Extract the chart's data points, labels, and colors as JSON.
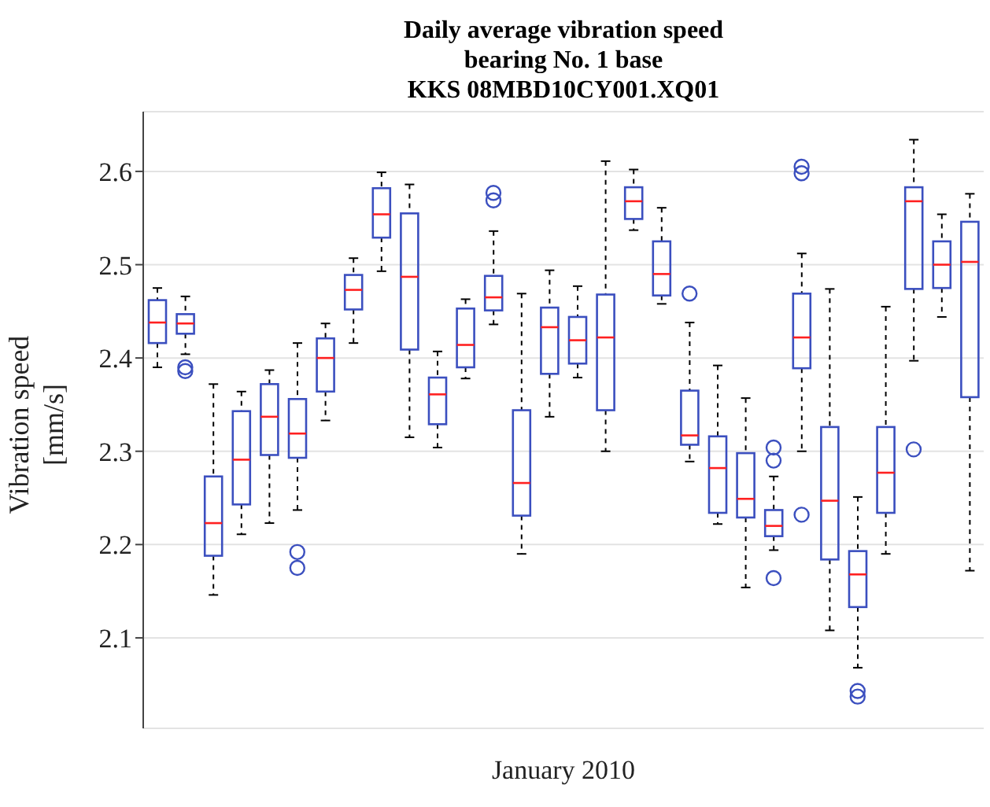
{
  "chart_data": {
    "type": "box",
    "title": "Daily average vibration speed\nbearing No. 1 base\nKKS 08MBD10CY001.XQ01",
    "xlabel": "January 2010",
    "ylabel": "Vibration speed [mm/s]",
    "categories": [
      null,
      null,
      null,
      null,
      null,
      null,
      null,
      null,
      null,
      null,
      null,
      null,
      null,
      null,
      null,
      null,
      null,
      null,
      null,
      null,
      null,
      null,
      null,
      null,
      null,
      null,
      null,
      null,
      null,
      null
    ],
    "ylim": [
      2.003,
      2.664
    ],
    "yticks": [
      2.1,
      2.2,
      2.3,
      2.4,
      2.5,
      2.6
    ],
    "grid": "y",
    "tick_labels": "y",
    "series": [
      {
        "color": "#3b4fbf",
        "boxes": [
          {
            "low": 2.39,
            "q1": 2.416,
            "median": 2.438,
            "q3": 2.462,
            "high": 2.475
          },
          {
            "low": 2.404,
            "q1": 2.426,
            "median": 2.437,
            "q3": 2.447,
            "high": 2.466,
            "outliers": [
              2.39,
              2.386
            ]
          },
          {
            "low": 2.146,
            "q1": 2.188,
            "median": 2.223,
            "q3": 2.273,
            "high": 2.372
          },
          {
            "low": 2.211,
            "q1": 2.243,
            "median": 2.291,
            "q3": 2.343,
            "high": 2.364
          },
          {
            "low": 2.223,
            "q1": 2.296,
            "median": 2.337,
            "q3": 2.372,
            "high": 2.387
          },
          {
            "low": 2.237,
            "q1": 2.293,
            "median": 2.319,
            "q3": 2.356,
            "high": 2.416,
            "outliers": [
              2.192,
              2.175
            ]
          },
          {
            "low": 2.333,
            "q1": 2.364,
            "median": 2.4,
            "q3": 2.421,
            "high": 2.437
          },
          {
            "low": 2.416,
            "q1": 2.452,
            "median": 2.473,
            "q3": 2.489,
            "high": 2.507
          },
          {
            "low": 2.493,
            "q1": 2.529,
            "median": 2.554,
            "q3": 2.582,
            "high": 2.599
          },
          {
            "low": 2.315,
            "q1": 2.409,
            "median": 2.487,
            "q3": 2.555,
            "high": 2.586
          },
          {
            "low": 2.304,
            "q1": 2.329,
            "median": 2.361,
            "q3": 2.379,
            "high": 2.407
          },
          {
            "low": 2.378,
            "q1": 2.39,
            "median": 2.414,
            "q3": 2.453,
            "high": 2.463
          },
          {
            "low": 2.436,
            "q1": 2.451,
            "median": 2.465,
            "q3": 2.488,
            "high": 2.536,
            "outliers": [
              2.577,
              2.569
            ]
          },
          {
            "low": 2.19,
            "q1": 2.231,
            "median": 2.266,
            "q3": 2.344,
            "high": 2.469
          },
          {
            "low": 2.337,
            "q1": 2.383,
            "median": 2.433,
            "q3": 2.454,
            "high": 2.494
          },
          {
            "low": 2.379,
            "q1": 2.394,
            "median": 2.419,
            "q3": 2.444,
            "high": 2.477
          },
          {
            "low": 2.3,
            "q1": 2.344,
            "median": 2.422,
            "q3": 2.468,
            "high": 2.611
          },
          {
            "low": 2.537,
            "q1": 2.549,
            "median": 2.568,
            "q3": 2.583,
            "high": 2.602
          },
          {
            "low": 2.458,
            "q1": 2.467,
            "median": 2.49,
            "q3": 2.525,
            "high": 2.561
          },
          {
            "low": 2.289,
            "q1": 2.307,
            "median": 2.317,
            "q3": 2.365,
            "high": 2.438,
            "outliers": [
              2.469
            ]
          },
          {
            "low": 2.222,
            "q1": 2.234,
            "median": 2.282,
            "q3": 2.316,
            "high": 2.392
          },
          {
            "low": 2.154,
            "q1": 2.229,
            "median": 2.249,
            "q3": 2.298,
            "high": 2.357
          },
          {
            "low": 2.194,
            "q1": 2.209,
            "median": 2.22,
            "q3": 2.237,
            "high": 2.273,
            "outliers": [
              2.304,
              2.29,
              2.164
            ]
          },
          {
            "low": 2.3,
            "q1": 2.389,
            "median": 2.422,
            "q3": 2.469,
            "high": 2.512,
            "outliers": [
              2.605,
              2.598,
              2.232
            ]
          },
          {
            "low": 2.108,
            "q1": 2.184,
            "median": 2.247,
            "q3": 2.326,
            "high": 2.474
          },
          {
            "low": 2.068,
            "q1": 2.133,
            "median": 2.168,
            "q3": 2.193,
            "high": 2.251,
            "outliers": [
              2.043,
              2.037
            ]
          },
          {
            "low": 2.19,
            "q1": 2.234,
            "median": 2.277,
            "q3": 2.326,
            "high": 2.455
          },
          {
            "low": 2.397,
            "q1": 2.474,
            "median": 2.568,
            "q3": 2.583,
            "high": 2.634,
            "outliers": [
              2.302
            ]
          },
          {
            "low": 2.444,
            "q1": 2.475,
            "median": 2.5,
            "q3": 2.525,
            "high": 2.554
          },
          {
            "low": 2.172,
            "q1": 2.358,
            "median": 2.503,
            "q3": 2.546,
            "high": 2.576
          }
        ]
      }
    ]
  }
}
